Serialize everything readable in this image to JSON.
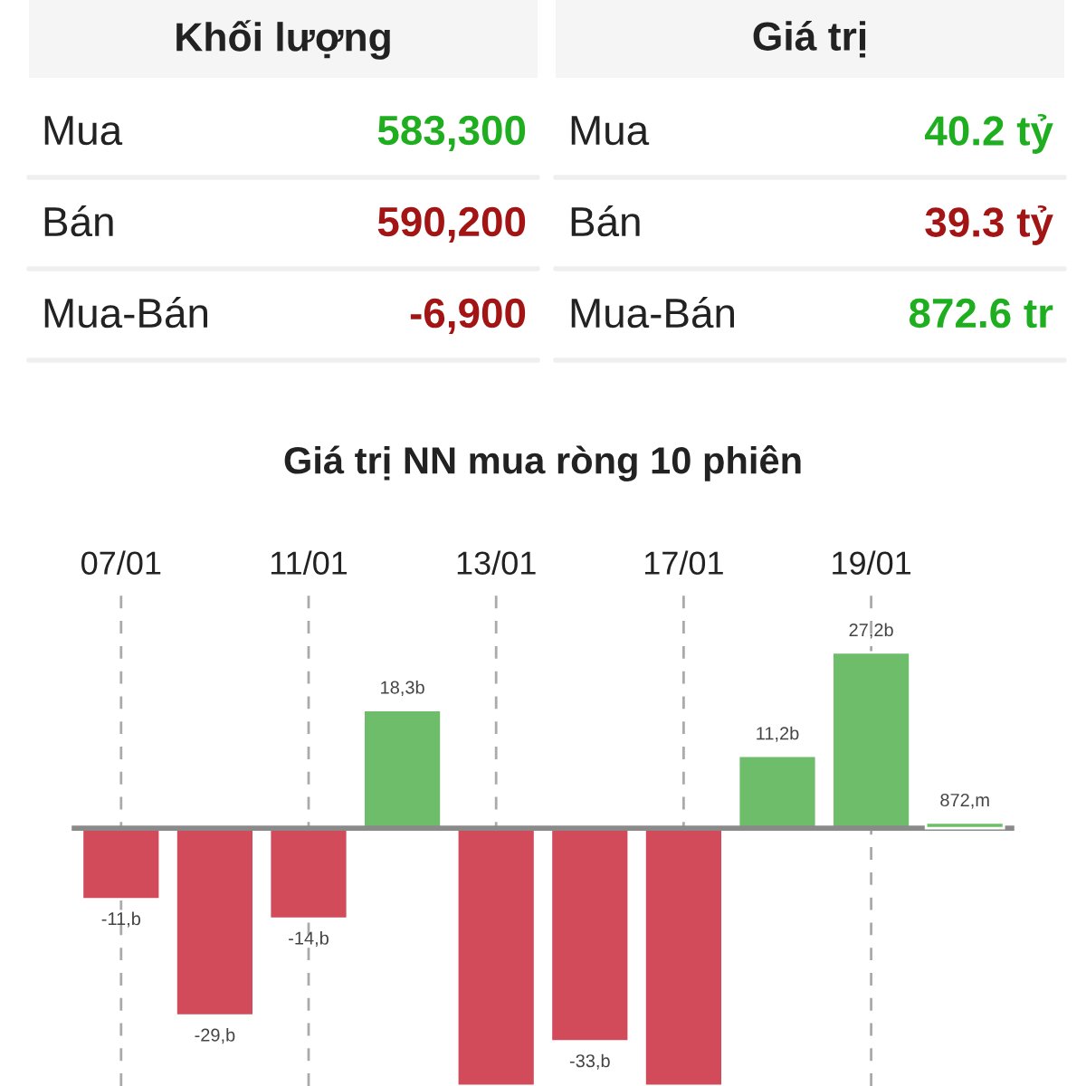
{
  "chart_data": [
    {
      "type": "other",
      "categories": [
        "Mua",
        "Bán",
        "Mua-Bán"
      ],
      "series": [
        {
          "name": "Khối lượng",
          "values": [
            583300,
            590200,
            -6900
          ],
          "value_labels": [
            "583,300",
            "590,200",
            "-6,900"
          ],
          "colors": [
            "#1fae1f",
            "#a31414",
            "#a31414"
          ]
        },
        {
          "name": "Giá trị",
          "values": [
            40.2,
            39.3,
            872.6
          ],
          "value_labels": [
            "40.2 tỷ",
            "39.3 tỷ",
            "872.6 tr"
          ],
          "colors": [
            "#1fae1f",
            "#a31414",
            "#1fae1f"
          ]
        }
      ]
    },
    {
      "type": "bar",
      "title": "Giá trị NN mua ròng 10 phiên",
      "categories": [
        "07/01",
        null,
        "11/01",
        null,
        "13/01",
        null,
        "17/01",
        null,
        "19/01",
        null
      ],
      "series": [
        {
          "values": [
            -11,
            -29,
            -14,
            18.3,
            -39.9,
            -33,
            -39.9,
            11.2,
            27.2,
            null
          ],
          "value_labels": [
            "-11,b",
            "-29,b",
            "-14,b",
            "18,3b",
            null,
            "-33,b",
            null,
            "11,2b",
            "27,2b",
            null
          ],
          "colors": [
            "#d14b5b",
            "#d14b5b",
            "#d14b5b",
            "#6dbd6a",
            "#d14b5b",
            "#d14b5b",
            "#d14b5b",
            "#6dbd6a",
            "#6dbd6a",
            null
          ]
        },
        {
          "axis": "y2",
          "values": [
            null,
            null,
            null,
            null,
            null,
            null,
            null,
            null,
            null,
            872
          ],
          "value_labels": [
            null,
            null,
            null,
            null,
            null,
            null,
            null,
            null,
            null,
            "872,m"
          ],
          "color": "#6dbd6a"
        }
      ],
      "ylim": [
        -39.9,
        36.3
      ],
      "y2lim": [
        -39900,
        36300
      ],
      "tick_labels": "x",
      "grid": "x"
    }
  ]
}
